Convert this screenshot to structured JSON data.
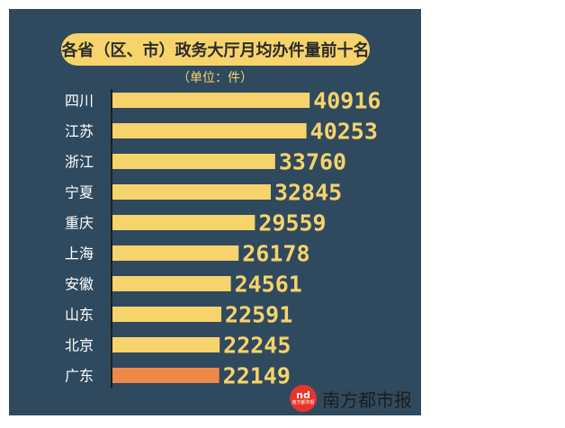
{
  "header": {
    "title": "各省（区、市）政务大厅月均办件量前十名",
    "subtitle": "（单位：件）"
  },
  "watermark": {
    "logo_text": "nd",
    "logo_subtext": "南方都市报",
    "text": "南方都市报"
  },
  "colors": {
    "background": "#2f4a5f",
    "bar": "#f6d36b",
    "highlight_bar": "#ee8a49",
    "value_text": "#f6d36b",
    "axis": "#1f1f1f"
  },
  "chart_data": {
    "type": "bar",
    "orientation": "horizontal",
    "title": "各省（区、市）政务大厅月均办件量前十名",
    "subtitle": "（单位：件）",
    "categories": [
      "四川",
      "江苏",
      "浙江",
      "宁夏",
      "重庆",
      "上海",
      "安徽",
      "山东",
      "北京",
      "广东"
    ],
    "values": [
      40916,
      40253,
      33760,
      32845,
      29559,
      26178,
      24561,
      22591,
      22245,
      22149
    ],
    "highlight": "广东",
    "xlim": [
      0,
      42000
    ],
    "grid": false,
    "legend": "none"
  }
}
